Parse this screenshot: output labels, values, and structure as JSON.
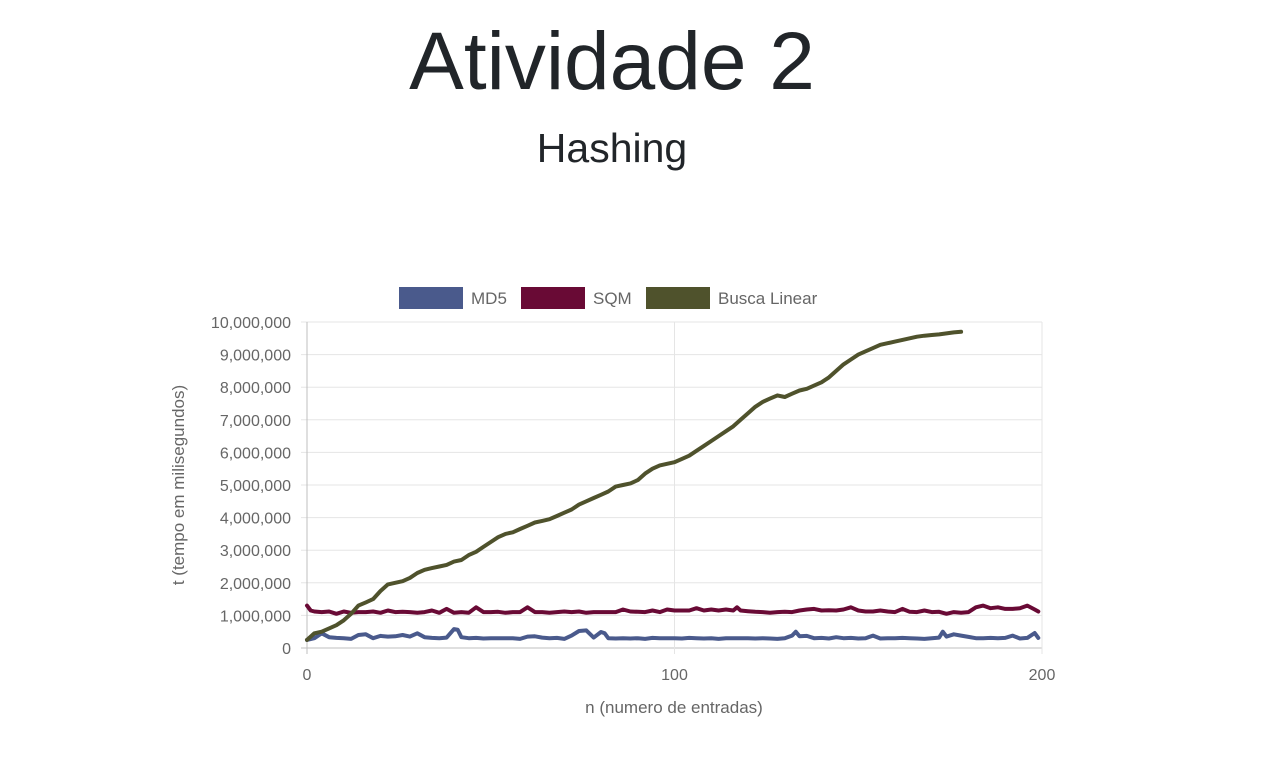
{
  "page": {
    "title": "Atividade 2",
    "subtitle": "Hashing"
  },
  "chart_data": {
    "type": "line",
    "xlabel": "n (numero de entradas)",
    "ylabel": "t (tempo em milisegundos)",
    "xlim": [
      0,
      200
    ],
    "ylim": [
      0,
      10000000
    ],
    "x_ticks": [
      "0",
      "100",
      "200"
    ],
    "y_ticks": [
      "0",
      "1,000,000",
      "2,000,000",
      "3,000,000",
      "4,000,000",
      "5,000,000",
      "6,000,000",
      "7,000,000",
      "8,000,000",
      "9,000,000",
      "10,000,000"
    ],
    "grid": true,
    "legend_position": "top",
    "series": [
      {
        "name": "MD5",
        "color": "#4a5a8c",
        "x": [
          0,
          2,
          4,
          6,
          8,
          10,
          12,
          14,
          16,
          18,
          20,
          22,
          24,
          26,
          28,
          30,
          32,
          34,
          36,
          38,
          40,
          41,
          42,
          44,
          46,
          48,
          50,
          52,
          54,
          56,
          58,
          60,
          62,
          64,
          66,
          68,
          70,
          72,
          74,
          76,
          78,
          80,
          81,
          82,
          84,
          86,
          88,
          90,
          92,
          94,
          96,
          98,
          100,
          102,
          104,
          106,
          108,
          110,
          112,
          114,
          116,
          118,
          120,
          122,
          124,
          126,
          128,
          130,
          132,
          133,
          134,
          136,
          138,
          140,
          142,
          144,
          146,
          148,
          150,
          152,
          154,
          156,
          158,
          160,
          162,
          164,
          166,
          168,
          170,
          172,
          173,
          174,
          176,
          178,
          180,
          182,
          184,
          186,
          188,
          190,
          192,
          194,
          196,
          198,
          199
        ],
        "values": [
          250000,
          300000,
          450000,
          330000,
          310000,
          300000,
          280000,
          400000,
          420000,
          300000,
          370000,
          350000,
          360000,
          400000,
          350000,
          450000,
          330000,
          310000,
          300000,
          320000,
          580000,
          560000,
          330000,
          300000,
          310000,
          290000,
          300000,
          300000,
          300000,
          300000,
          280000,
          350000,
          360000,
          320000,
          300000,
          310000,
          280000,
          380000,
          520000,
          540000,
          320000,
          490000,
          450000,
          300000,
          290000,
          300000,
          290000,
          300000,
          280000,
          310000,
          300000,
          300000,
          300000,
          290000,
          310000,
          300000,
          290000,
          300000,
          280000,
          300000,
          300000,
          300000,
          300000,
          290000,
          300000,
          290000,
          280000,
          300000,
          380000,
          500000,
          360000,
          370000,
          300000,
          310000,
          290000,
          330000,
          300000,
          310000,
          290000,
          300000,
          380000,
          290000,
          300000,
          300000,
          310000,
          300000,
          290000,
          280000,
          300000,
          320000,
          500000,
          350000,
          420000,
          380000,
          340000,
          300000,
          300000,
          310000,
          300000,
          310000,
          380000,
          290000,
          310000,
          460000,
          310000
        ]
      },
      {
        "name": "SQM",
        "color": "#690a35",
        "x": [
          0,
          1,
          2,
          4,
          6,
          8,
          10,
          12,
          14,
          16,
          18,
          20,
          22,
          24,
          26,
          28,
          30,
          32,
          34,
          36,
          38,
          40,
          42,
          44,
          46,
          48,
          50,
          52,
          54,
          56,
          58,
          60,
          62,
          64,
          66,
          68,
          70,
          72,
          74,
          76,
          78,
          80,
          82,
          84,
          86,
          88,
          90,
          92,
          94,
          96,
          98,
          100,
          102,
          104,
          106,
          108,
          110,
          112,
          114,
          116,
          117,
          118,
          120,
          122,
          124,
          126,
          128,
          130,
          132,
          134,
          136,
          138,
          140,
          142,
          144,
          146,
          148,
          150,
          152,
          154,
          156,
          158,
          160,
          162,
          164,
          166,
          168,
          170,
          172,
          174,
          176,
          178,
          180,
          182,
          184,
          186,
          188,
          190,
          192,
          194,
          196,
          198,
          199
        ],
        "values": [
          1300000,
          1150000,
          1120000,
          1100000,
          1120000,
          1050000,
          1120000,
          1080000,
          1100000,
          1100000,
          1120000,
          1080000,
          1150000,
          1100000,
          1110000,
          1100000,
          1080000,
          1100000,
          1150000,
          1080000,
          1200000,
          1080000,
          1100000,
          1080000,
          1250000,
          1100000,
          1100000,
          1110000,
          1080000,
          1100000,
          1100000,
          1250000,
          1100000,
          1100000,
          1080000,
          1100000,
          1120000,
          1100000,
          1120000,
          1080000,
          1100000,
          1100000,
          1100000,
          1100000,
          1180000,
          1120000,
          1110000,
          1100000,
          1150000,
          1100000,
          1180000,
          1150000,
          1150000,
          1150000,
          1220000,
          1150000,
          1180000,
          1150000,
          1180000,
          1150000,
          1250000,
          1150000,
          1130000,
          1110000,
          1100000,
          1080000,
          1100000,
          1110000,
          1100000,
          1150000,
          1180000,
          1200000,
          1150000,
          1160000,
          1150000,
          1180000,
          1250000,
          1150000,
          1120000,
          1120000,
          1150000,
          1120000,
          1100000,
          1200000,
          1110000,
          1100000,
          1150000,
          1100000,
          1110000,
          1050000,
          1100000,
          1080000,
          1100000,
          1250000,
          1300000,
          1220000,
          1250000,
          1200000,
          1200000,
          1220000,
          1300000,
          1180000,
          1120000
        ]
      },
      {
        "name": "Busca Linear",
        "color": "#4f522c",
        "x": [
          0,
          2,
          4,
          6,
          8,
          10,
          12,
          14,
          16,
          18,
          20,
          22,
          24,
          26,
          28,
          30,
          32,
          34,
          36,
          38,
          40,
          42,
          44,
          46,
          48,
          50,
          52,
          54,
          56,
          58,
          60,
          62,
          64,
          66,
          68,
          70,
          72,
          74,
          76,
          78,
          80,
          82,
          84,
          86,
          88,
          90,
          92,
          94,
          96,
          98,
          100,
          102,
          104,
          106,
          108,
          110,
          112,
          114,
          116,
          118,
          120,
          122,
          124,
          126,
          128,
          130,
          132,
          134,
          136,
          138,
          140,
          142,
          144,
          146,
          148,
          150,
          152,
          154,
          156,
          158,
          160,
          162,
          164,
          166,
          168,
          170,
          172,
          174,
          176,
          178
        ],
        "values": [
          250000,
          450000,
          500000,
          600000,
          700000,
          850000,
          1050000,
          1300000,
          1400000,
          1500000,
          1750000,
          1950000,
          2000000,
          2050000,
          2150000,
          2300000,
          2400000,
          2450000,
          2500000,
          2550000,
          2650000,
          2700000,
          2850000,
          2950000,
          3100000,
          3250000,
          3400000,
          3500000,
          3550000,
          3650000,
          3750000,
          3850000,
          3900000,
          3950000,
          4050000,
          4150000,
          4250000,
          4400000,
          4500000,
          4600000,
          4700000,
          4800000,
          4950000,
          5000000,
          5050000,
          5150000,
          5350000,
          5500000,
          5600000,
          5650000,
          5700000,
          5800000,
          5900000,
          6050000,
          6200000,
          6350000,
          6500000,
          6650000,
          6800000,
          7000000,
          7200000,
          7400000,
          7550000,
          7650000,
          7750000,
          7700000,
          7800000,
          7900000,
          7950000,
          8050000,
          8150000,
          8300000,
          8500000,
          8700000,
          8850000,
          9000000,
          9100000,
          9200000,
          9300000,
          9350000,
          9400000,
          9450000,
          9500000,
          9550000,
          9580000,
          9600000,
          9620000,
          9650000,
          9680000,
          9700000
        ]
      }
    ]
  }
}
